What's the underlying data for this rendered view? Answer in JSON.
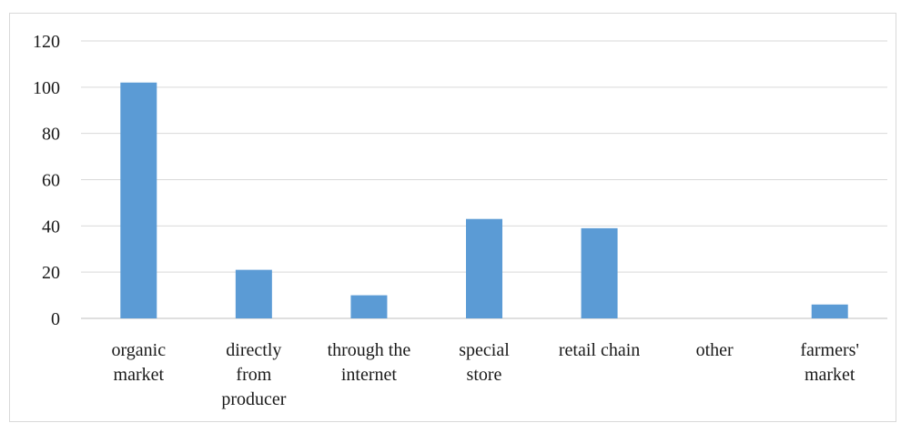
{
  "chart_data": {
    "type": "bar",
    "title": "",
    "xlabel": "",
    "ylabel": "",
    "categories": [
      [
        "organic",
        "market"
      ],
      [
        "directly",
        "from",
        "producer"
      ],
      [
        "through the",
        "internet"
      ],
      [
        "special",
        "store"
      ],
      [
        "retail chain"
      ],
      [
        "other"
      ],
      [
        "farmers'",
        "market"
      ]
    ],
    "values": [
      102,
      21,
      10,
      43,
      39,
      0,
      6
    ],
    "ylim": [
      0,
      120
    ],
    "yticks": [
      0,
      20,
      40,
      60,
      80,
      100,
      120
    ],
    "grid": true,
    "legend": "none",
    "bar_color": "#5b9bd5",
    "grid_color": "#d9d9d9",
    "axis_color": "#bfbfbf"
  }
}
